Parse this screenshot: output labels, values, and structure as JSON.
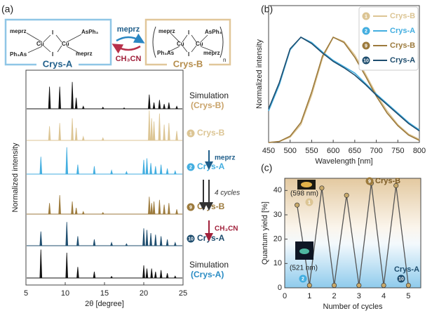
{
  "panel_labels": [
    "(a)",
    "(b)",
    "(c)"
  ],
  "scheme": {
    "ligand": "meprz",
    "metal": "Cu",
    "halide": "I",
    "arsine_right": "AsPh₃",
    "arsine_left": "Ph₃As",
    "crys_a": "Crys-A",
    "crys_b": "Crys-B",
    "polymer_index": "n",
    "forward": "meprz",
    "reverse": "CH₃CN"
  },
  "chart_data": [
    {
      "type": "peaks",
      "xlabel": "2θ [degree]",
      "ylabel": "Normalized intensity",
      "xlim": [
        5,
        25
      ],
      "xticks": [
        5,
        10,
        15,
        20,
        25
      ],
      "series": [
        {
          "name": "Simulation",
          "sublabel": "(Crys-B)",
          "color": "#111111",
          "label_color": "#c9a36a",
          "x": [
            8.0,
            9.3,
            10.9,
            11.4,
            12.3,
            14.8,
            17.5,
            20.7,
            21.3,
            22.0,
            22.6,
            23.2,
            24.2
          ],
          "values": [
            0.7,
            0.7,
            0.85,
            0.35,
            0.08,
            0.05,
            0.03,
            0.45,
            0.2,
            0.28,
            0.15,
            0.2,
            0.08
          ]
        },
        {
          "badge": "1",
          "name": "Crys-B",
          "color": "#dcc594",
          "x": [
            8.0,
            9.3,
            10.9,
            11.4,
            12.3,
            14.8,
            20.7,
            21.0,
            21.3,
            22.0,
            22.6,
            23.2,
            24.2
          ],
          "values": [
            0.45,
            0.55,
            0.7,
            0.4,
            0.12,
            0.08,
            0.95,
            0.7,
            0.6,
            0.85,
            0.5,
            0.55,
            0.3
          ]
        },
        {
          "badge": "2",
          "name": "Crys-A",
          "color": "#43aee0",
          "x": [
            6.9,
            10.2,
            11.6,
            13.7,
            15.9,
            17.8,
            20.0,
            20.4,
            20.9,
            21.5,
            22.2,
            23.0,
            24.0
          ],
          "values": [
            0.55,
            0.85,
            0.3,
            0.25,
            0.12,
            0.08,
            0.45,
            0.5,
            0.35,
            0.25,
            0.3,
            0.18,
            0.1
          ]
        },
        {
          "badge": "9",
          "name": "Crys-B",
          "color": "#9c7a3c",
          "x": [
            8.0,
            9.3,
            10.9,
            11.4,
            12.3,
            14.8,
            20.7,
            21.0,
            21.3,
            22.0,
            22.6,
            23.2,
            24.2
          ],
          "values": [
            0.35,
            0.6,
            0.4,
            0.2,
            0.08,
            0.05,
            0.55,
            0.35,
            0.4,
            0.45,
            0.3,
            0.35,
            0.15
          ]
        },
        {
          "badge": "10",
          "name": "Crys-A",
          "color": "#1e4d6e",
          "x": [
            6.9,
            10.2,
            11.6,
            13.7,
            15.9,
            17.8,
            20.0,
            20.4,
            20.9,
            21.5,
            22.2,
            23.0,
            24.0
          ],
          "values": [
            0.45,
            0.75,
            0.3,
            0.2,
            0.1,
            0.06,
            0.55,
            0.5,
            0.4,
            0.35,
            0.3,
            0.2,
            0.1
          ]
        },
        {
          "name": "Simulation",
          "sublabel": "(Crys-A)",
          "color": "#111111",
          "label_color": "#2a8cc4",
          "x": [
            6.9,
            10.2,
            11.6,
            13.7,
            15.9,
            20.0,
            20.4,
            21.0,
            21.5,
            22.2,
            23.0,
            24.0
          ],
          "values": [
            0.9,
            0.8,
            0.35,
            0.2,
            0.05,
            0.4,
            0.3,
            0.3,
            0.2,
            0.25,
            0.15,
            0.06
          ]
        }
      ],
      "annotations": [
        {
          "text": "meprz",
          "color": "#1f5e8a"
        },
        {
          "text": "4 cycles",
          "color": "#333333"
        },
        {
          "text": "CH₃CN",
          "color": "#a0203a"
        }
      ]
    },
    {
      "type": "line",
      "xlabel": "Wavelength [nm]",
      "ylabel": "Normalized intensity",
      "xlim": [
        450,
        800
      ],
      "xticks": [
        450,
        500,
        550,
        600,
        650,
        700,
        750,
        800
      ],
      "ylim": [
        0,
        1.3
      ],
      "legend": "upper right",
      "x": [
        450,
        475,
        500,
        525,
        550,
        575,
        600,
        625,
        650,
        675,
        700,
        725,
        750,
        775,
        800
      ],
      "series": [
        {
          "badge": "1",
          "name": "Crys-B",
          "color": "#dcc594",
          "values": [
            0,
            0.01,
            0.05,
            0.17,
            0.45,
            0.8,
            1.0,
            0.96,
            0.83,
            0.65,
            0.46,
            0.3,
            0.17,
            0.08,
            0.03
          ]
        },
        {
          "badge": "2",
          "name": "Crys-A",
          "color": "#43aee0",
          "values": [
            0.3,
            0.55,
            0.88,
            1.0,
            0.95,
            0.86,
            0.78,
            0.72,
            0.66,
            0.56,
            0.46,
            0.37,
            0.28,
            0.19,
            0.12
          ]
        },
        {
          "badge": "9",
          "name": "Crys-B",
          "color": "#9c7a3c",
          "values": [
            0,
            0.01,
            0.06,
            0.19,
            0.48,
            0.82,
            1.0,
            0.95,
            0.81,
            0.63,
            0.44,
            0.28,
            0.16,
            0.07,
            0.02
          ]
        },
        {
          "badge": "10",
          "name": "Crys-A",
          "color": "#1e4d6e",
          "values": [
            0.32,
            0.57,
            0.89,
            1.0,
            0.94,
            0.85,
            0.77,
            0.71,
            0.64,
            0.55,
            0.45,
            0.36,
            0.27,
            0.18,
            0.11
          ]
        }
      ]
    },
    {
      "type": "cycle",
      "xlabel": "Number of cycles",
      "ylabel": "Quantum yield  [%]",
      "xlim": [
        0,
        5.5
      ],
      "xticks": [
        0,
        1,
        2,
        3,
        4,
        5
      ],
      "ylim": [
        0,
        45
      ],
      "yticks": [
        0,
        10,
        20,
        30,
        40
      ],
      "x": [
        0.5,
        1,
        1.5,
        2,
        2.5,
        3,
        3.5,
        4,
        4.5,
        5
      ],
      "values": [
        34,
        1,
        41,
        1,
        38,
        1,
        43,
        1,
        42,
        1
      ],
      "color": "#555555",
      "marker_color": "#c8a96a",
      "annotations": {
        "wavelength_b": "(598 nm)",
        "wavelength_a": "(521 nm)",
        "badge_b1": "1",
        "badge_a2": "2",
        "badge_b9": "9",
        "badge_a10": "10",
        "label_b": "Crys-B",
        "label_a": "Crys-A"
      }
    }
  ]
}
